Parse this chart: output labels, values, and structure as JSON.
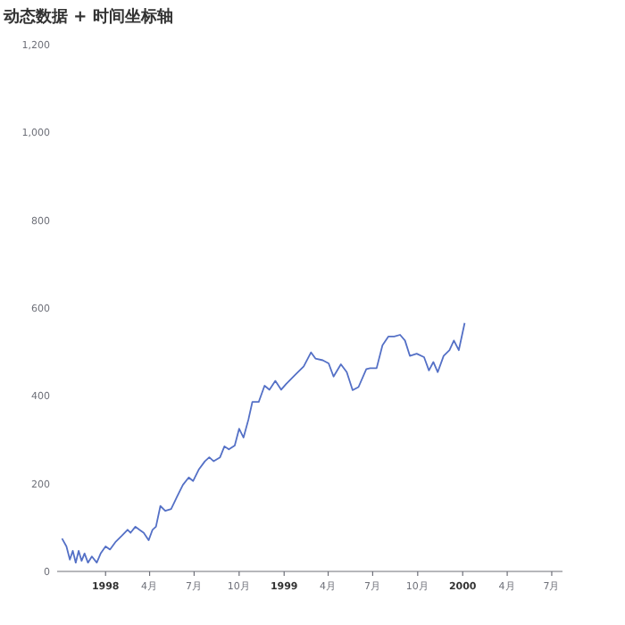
{
  "chart_data": {
    "type": "line",
    "title": "动态数据 + 时间坐标轴",
    "x": [
      "1997-10-04",
      "1997-10-13",
      "1997-10-20",
      "1997-10-26",
      "1997-11-01",
      "1997-11-07",
      "1997-11-13",
      "1997-11-19",
      "1997-11-26",
      "1997-12-04",
      "1997-12-14",
      "1997-12-22",
      "1998-01-01",
      "1998-01-10",
      "1998-01-22",
      "1998-02-03",
      "1998-02-15",
      "1998-02-21",
      "1998-03-03",
      "1998-03-11",
      "1998-03-20",
      "1998-03-30",
      "1998-04-07",
      "1998-04-14",
      "1998-04-23",
      "1998-05-03",
      "1998-05-15",
      "1998-05-27",
      "1998-06-08",
      "1998-06-20",
      "1998-06-29",
      "1998-07-11",
      "1998-07-23",
      "1998-08-01",
      "1998-08-10",
      "1998-08-23",
      "1998-09-01",
      "1998-09-10",
      "1998-09-22",
      "1998-10-01",
      "1998-10-10",
      "1998-10-20",
      "1998-10-28",
      "1998-11-10",
      "1998-11-22",
      "1998-12-02",
      "1998-12-14",
      "1998-12-26",
      "1999-01-05",
      "1999-01-23",
      "1999-02-10",
      "1999-02-25",
      "1999-03-06",
      "1999-03-21",
      "1999-04-02",
      "1999-04-12",
      "1999-04-27",
      "1999-05-09",
      "1999-05-21",
      "1999-06-02",
      "1999-06-18",
      "1999-06-26",
      "1999-07-09",
      "1999-07-21",
      "1999-08-02",
      "1999-08-14",
      "1999-08-26",
      "1999-09-05",
      "1999-09-15",
      "1999-09-29",
      "1999-10-14",
      "1999-10-24",
      "1999-11-02",
      "1999-11-11",
      "1999-11-23",
      "1999-12-05",
      "1999-12-14",
      "1999-12-24",
      "2000-01-05"
    ],
    "series": [
      {
        "color": "#5470c6",
        "values": [
          75,
          57,
          27,
          47,
          20,
          47,
          24,
          41,
          20,
          34,
          20,
          41,
          57,
          50,
          68,
          81,
          95,
          88,
          102,
          95,
          88,
          71,
          95,
          102,
          149,
          138,
          142,
          170,
          197,
          214,
          206,
          233,
          251,
          260,
          251,
          260,
          285,
          278,
          287,
          325,
          305,
          346,
          386,
          386,
          423,
          414,
          434,
          414,
          427,
          447,
          467,
          499,
          485,
          481,
          474,
          444,
          472,
          454,
          413,
          420,
          461,
          463,
          463,
          515,
          535,
          535,
          539,
          526,
          491,
          496,
          488,
          458,
          477,
          454,
          491,
          504,
          526,
          504,
          566
        ]
      }
    ],
    "xlim": [
      "1997-09-24",
      "2000-07-23"
    ],
    "xticks": [
      {
        "value": "1998-01-01",
        "label": "1998"
      },
      {
        "value": "1998-04-01",
        "label": "4月"
      },
      {
        "value": "1998-07-01",
        "label": "7月"
      },
      {
        "value": "1998-10-01",
        "label": "10月"
      },
      {
        "value": "1999-01-01",
        "label": "1999"
      },
      {
        "value": "1999-04-01",
        "label": "4月"
      },
      {
        "value": "1999-07-01",
        "label": "7月"
      },
      {
        "value": "1999-10-01",
        "label": "10月"
      },
      {
        "value": "2000-01-01",
        "label": "2000"
      },
      {
        "value": "2000-04-01",
        "label": "4月"
      },
      {
        "value": "2000-07-01",
        "label": "7月"
      }
    ],
    "ylim": [
      0,
      1200
    ],
    "yticks": [
      0,
      200,
      400,
      600,
      800,
      {
        "value": 1000,
        "label": "1,000"
      },
      {
        "value": 1200,
        "label": "1,200"
      }
    ],
    "line_style": "solid"
  }
}
